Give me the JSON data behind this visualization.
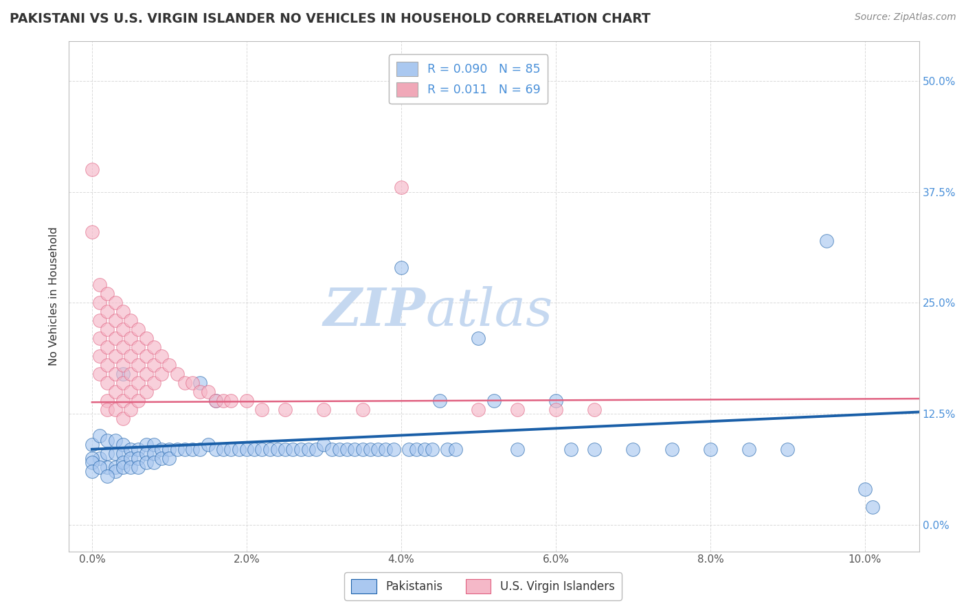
{
  "title": "PAKISTANI VS U.S. VIRGIN ISLANDER NO VEHICLES IN HOUSEHOLD CORRELATION CHART",
  "source": "Source: ZipAtlas.com",
  "xlabel_ticks": [
    "0.0%",
    "2.0%",
    "4.0%",
    "6.0%",
    "8.0%",
    "10.0%"
  ],
  "xlabel_values": [
    0.0,
    0.02,
    0.04,
    0.06,
    0.08,
    0.1
  ],
  "ylabel_ticks": [
    "0.0%",
    "12.5%",
    "25.0%",
    "37.5%",
    "50.0%"
  ],
  "ylabel_values": [
    0.0,
    0.125,
    0.25,
    0.375,
    0.5
  ],
  "xlim": [
    -0.003,
    0.107
  ],
  "ylim": [
    -0.03,
    0.545
  ],
  "ylabel": "No Vehicles in Household",
  "legend_entries": [
    {
      "label": "Pakistanis",
      "R": "0.090",
      "N": "85",
      "color": "#aac8f0"
    },
    {
      "label": "U.S. Virgin Islanders",
      "R": "0.011",
      "N": "69",
      "color": "#f0a8b8"
    }
  ],
  "pakistani_scatter_color": "#aac8f0",
  "virgin_scatter_color": "#f5b8c8",
  "pakistani_line_color": "#1a5fa8",
  "virgin_line_color": "#e06080",
  "watermark_zip": "ZIP",
  "watermark_atlas": "atlas",
  "pakistani_points": [
    [
      0.0,
      0.09
    ],
    [
      0.001,
      0.1
    ],
    [
      0.001,
      0.075
    ],
    [
      0.002,
      0.095
    ],
    [
      0.002,
      0.08
    ],
    [
      0.002,
      0.065
    ],
    [
      0.003,
      0.095
    ],
    [
      0.003,
      0.08
    ],
    [
      0.003,
      0.065
    ],
    [
      0.003,
      0.06
    ],
    [
      0.004,
      0.17
    ],
    [
      0.004,
      0.09
    ],
    [
      0.004,
      0.08
    ],
    [
      0.004,
      0.07
    ],
    [
      0.004,
      0.065
    ],
    [
      0.005,
      0.085
    ],
    [
      0.005,
      0.075
    ],
    [
      0.005,
      0.065
    ],
    [
      0.006,
      0.085
    ],
    [
      0.006,
      0.075
    ],
    [
      0.006,
      0.065
    ],
    [
      0.007,
      0.09
    ],
    [
      0.007,
      0.08
    ],
    [
      0.007,
      0.07
    ],
    [
      0.008,
      0.09
    ],
    [
      0.008,
      0.08
    ],
    [
      0.008,
      0.07
    ],
    [
      0.009,
      0.085
    ],
    [
      0.009,
      0.075
    ],
    [
      0.01,
      0.085
    ],
    [
      0.01,
      0.075
    ],
    [
      0.011,
      0.085
    ],
    [
      0.012,
      0.085
    ],
    [
      0.013,
      0.085
    ],
    [
      0.014,
      0.16
    ],
    [
      0.014,
      0.085
    ],
    [
      0.015,
      0.09
    ],
    [
      0.016,
      0.14
    ],
    [
      0.016,
      0.085
    ],
    [
      0.017,
      0.085
    ],
    [
      0.018,
      0.085
    ],
    [
      0.019,
      0.085
    ],
    [
      0.02,
      0.085
    ],
    [
      0.021,
      0.085
    ],
    [
      0.022,
      0.085
    ],
    [
      0.023,
      0.085
    ],
    [
      0.024,
      0.085
    ],
    [
      0.025,
      0.085
    ],
    [
      0.026,
      0.085
    ],
    [
      0.027,
      0.085
    ],
    [
      0.028,
      0.085
    ],
    [
      0.029,
      0.085
    ],
    [
      0.03,
      0.09
    ],
    [
      0.031,
      0.085
    ],
    [
      0.032,
      0.085
    ],
    [
      0.033,
      0.085
    ],
    [
      0.034,
      0.085
    ],
    [
      0.035,
      0.085
    ],
    [
      0.036,
      0.085
    ],
    [
      0.037,
      0.085
    ],
    [
      0.038,
      0.085
    ],
    [
      0.039,
      0.085
    ],
    [
      0.04,
      0.29
    ],
    [
      0.041,
      0.085
    ],
    [
      0.042,
      0.085
    ],
    [
      0.043,
      0.085
    ],
    [
      0.044,
      0.085
    ],
    [
      0.045,
      0.14
    ],
    [
      0.046,
      0.085
    ],
    [
      0.047,
      0.085
    ],
    [
      0.05,
      0.21
    ],
    [
      0.052,
      0.14
    ],
    [
      0.055,
      0.085
    ],
    [
      0.06,
      0.14
    ],
    [
      0.062,
      0.085
    ],
    [
      0.065,
      0.085
    ],
    [
      0.07,
      0.085
    ],
    [
      0.075,
      0.085
    ],
    [
      0.08,
      0.085
    ],
    [
      0.085,
      0.085
    ],
    [
      0.09,
      0.085
    ],
    [
      0.095,
      0.32
    ],
    [
      0.1,
      0.04
    ],
    [
      0.101,
      0.02
    ],
    [
      0.0,
      0.075
    ],
    [
      0.0,
      0.07
    ],
    [
      0.0,
      0.06
    ],
    [
      0.001,
      0.065
    ],
    [
      0.002,
      0.055
    ]
  ],
  "virgin_points": [
    [
      0.0,
      0.4
    ],
    [
      0.0,
      0.33
    ],
    [
      0.001,
      0.27
    ],
    [
      0.001,
      0.25
    ],
    [
      0.001,
      0.23
    ],
    [
      0.001,
      0.21
    ],
    [
      0.001,
      0.19
    ],
    [
      0.001,
      0.17
    ],
    [
      0.002,
      0.26
    ],
    [
      0.002,
      0.24
    ],
    [
      0.002,
      0.22
    ],
    [
      0.002,
      0.2
    ],
    [
      0.002,
      0.18
    ],
    [
      0.002,
      0.16
    ],
    [
      0.002,
      0.14
    ],
    [
      0.002,
      0.13
    ],
    [
      0.003,
      0.25
    ],
    [
      0.003,
      0.23
    ],
    [
      0.003,
      0.21
    ],
    [
      0.003,
      0.19
    ],
    [
      0.003,
      0.17
    ],
    [
      0.003,
      0.15
    ],
    [
      0.003,
      0.13
    ],
    [
      0.004,
      0.24
    ],
    [
      0.004,
      0.22
    ],
    [
      0.004,
      0.2
    ],
    [
      0.004,
      0.18
    ],
    [
      0.004,
      0.16
    ],
    [
      0.004,
      0.14
    ],
    [
      0.004,
      0.12
    ],
    [
      0.005,
      0.23
    ],
    [
      0.005,
      0.21
    ],
    [
      0.005,
      0.19
    ],
    [
      0.005,
      0.17
    ],
    [
      0.005,
      0.15
    ],
    [
      0.005,
      0.13
    ],
    [
      0.006,
      0.22
    ],
    [
      0.006,
      0.2
    ],
    [
      0.006,
      0.18
    ],
    [
      0.006,
      0.16
    ],
    [
      0.006,
      0.14
    ],
    [
      0.007,
      0.21
    ],
    [
      0.007,
      0.19
    ],
    [
      0.007,
      0.17
    ],
    [
      0.007,
      0.15
    ],
    [
      0.008,
      0.2
    ],
    [
      0.008,
      0.18
    ],
    [
      0.008,
      0.16
    ],
    [
      0.009,
      0.19
    ],
    [
      0.009,
      0.17
    ],
    [
      0.01,
      0.18
    ],
    [
      0.011,
      0.17
    ],
    [
      0.012,
      0.16
    ],
    [
      0.013,
      0.16
    ],
    [
      0.014,
      0.15
    ],
    [
      0.015,
      0.15
    ],
    [
      0.016,
      0.14
    ],
    [
      0.017,
      0.14
    ],
    [
      0.018,
      0.14
    ],
    [
      0.02,
      0.14
    ],
    [
      0.022,
      0.13
    ],
    [
      0.025,
      0.13
    ],
    [
      0.03,
      0.13
    ],
    [
      0.035,
      0.13
    ],
    [
      0.04,
      0.38
    ],
    [
      0.05,
      0.13
    ],
    [
      0.055,
      0.13
    ],
    [
      0.06,
      0.13
    ],
    [
      0.065,
      0.13
    ]
  ],
  "pakistani_line": {
    "x0": 0.0,
    "x1": 0.107,
    "y0": 0.085,
    "y1": 0.127
  },
  "virgin_line": {
    "x0": 0.0,
    "x1": 0.107,
    "y0": 0.138,
    "y1": 0.142
  },
  "title_fontsize": 13.5,
  "source_fontsize": 10,
  "watermark_fontsize": 55,
  "background_color": "#ffffff",
  "grid_color": "#d0d0d0"
}
